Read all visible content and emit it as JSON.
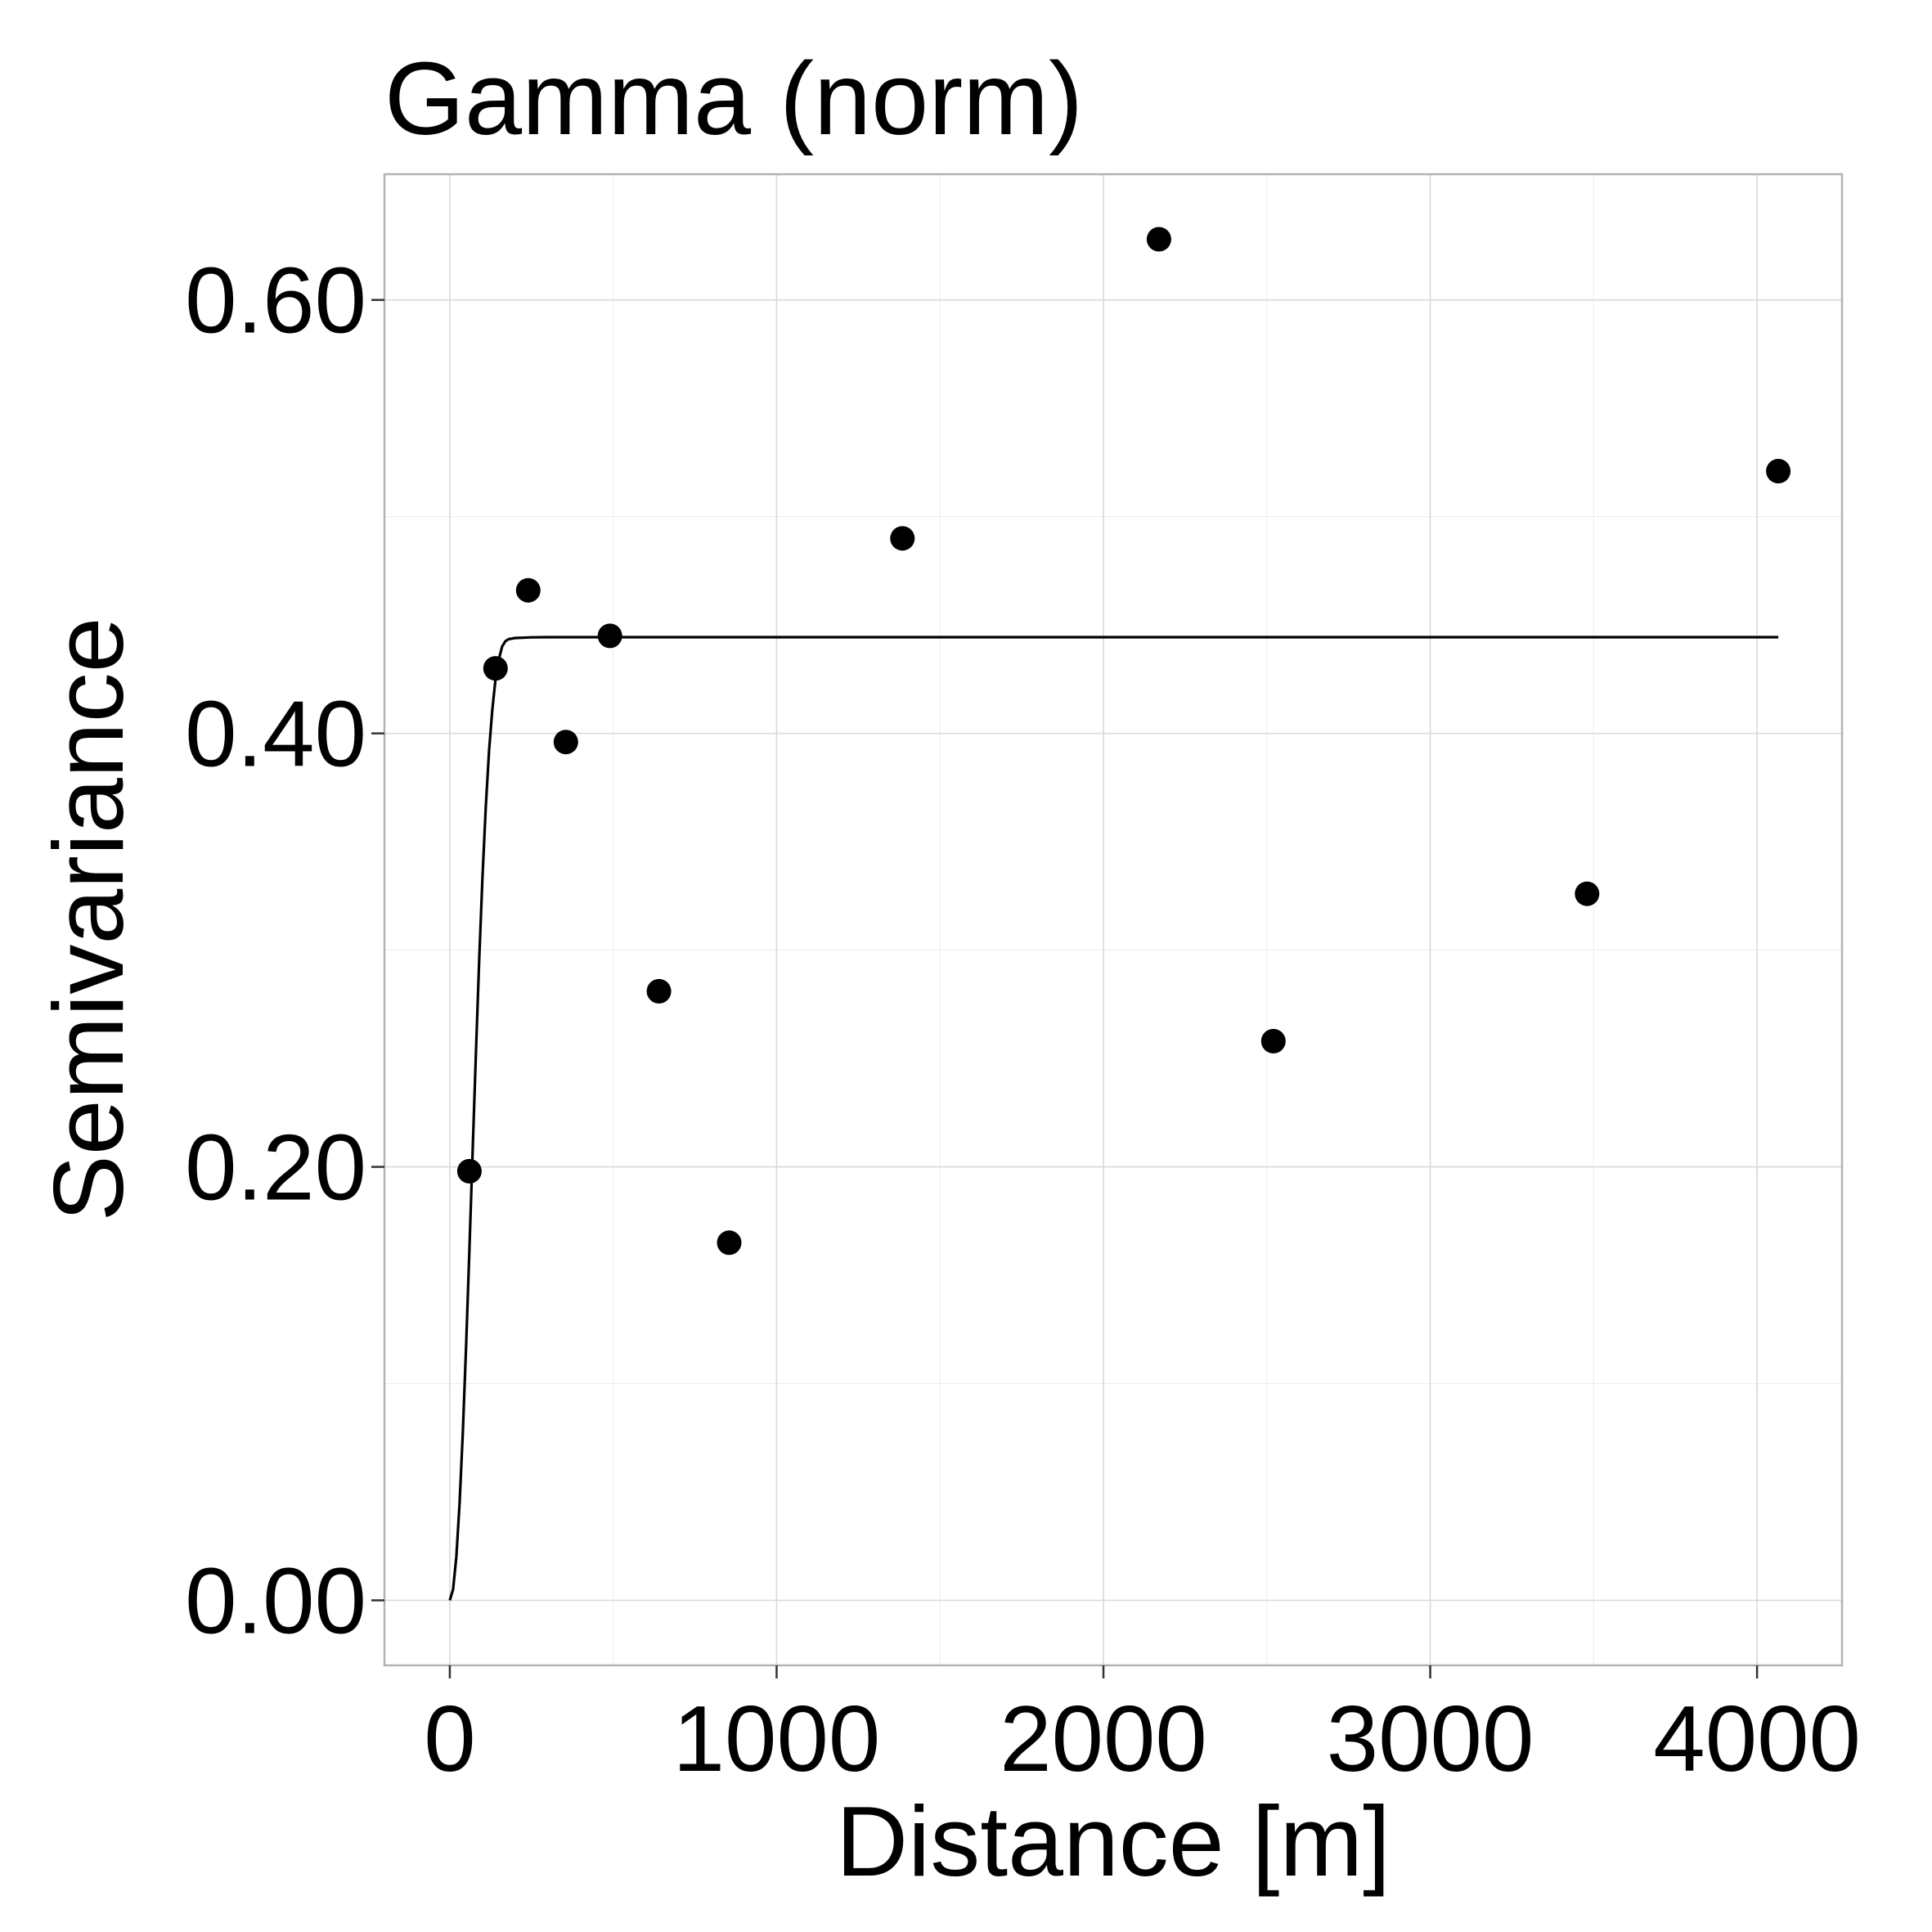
{
  "chart_data": {
    "type": "scatter",
    "title": "Gamma (norm)",
    "xlabel": "Distance [m]",
    "ylabel": "Semivariance",
    "xlim": [
      -200,
      4260
    ],
    "ylim": [
      -0.03,
      0.658
    ],
    "x_ticks": [
      0,
      1000,
      2000,
      3000,
      4000
    ],
    "x_tick_labels": [
      "0",
      "1000",
      "2000",
      "3000",
      "4000"
    ],
    "y_ticks": [
      0.0,
      0.2,
      0.4,
      0.6
    ],
    "y_tick_labels": [
      "0.00",
      "0.20",
      "0.40",
      "0.60"
    ],
    "grid": true,
    "legend": "none",
    "series": [
      {
        "type": "scatter",
        "points": [
          {
            "x": 60,
            "y": 0.198
          },
          {
            "x": 140,
            "y": 0.43
          },
          {
            "x": 240,
            "y": 0.466
          },
          {
            "x": 355,
            "y": 0.396
          },
          {
            "x": 490,
            "y": 0.445
          },
          {
            "x": 640,
            "y": 0.281
          },
          {
            "x": 855,
            "y": 0.165
          },
          {
            "x": 1385,
            "y": 0.49
          },
          {
            "x": 2170,
            "y": 0.628
          },
          {
            "x": 2520,
            "y": 0.258
          },
          {
            "x": 3480,
            "y": 0.326
          },
          {
            "x": 4065,
            "y": 0.521
          }
        ]
      },
      {
        "type": "line",
        "points": [
          {
            "x": 0,
            "y": 0.0
          },
          {
            "x": 10,
            "y": 0.005
          },
          {
            "x": 20,
            "y": 0.02
          },
          {
            "x": 30,
            "y": 0.045
          },
          {
            "x": 40,
            "y": 0.078
          },
          {
            "x": 50,
            "y": 0.118
          },
          {
            "x": 60,
            "y": 0.162
          },
          {
            "x": 70,
            "y": 0.208
          },
          {
            "x": 80,
            "y": 0.253
          },
          {
            "x": 90,
            "y": 0.296
          },
          {
            "x": 100,
            "y": 0.334
          },
          {
            "x": 110,
            "y": 0.366
          },
          {
            "x": 120,
            "y": 0.392
          },
          {
            "x": 130,
            "y": 0.411
          },
          {
            "x": 140,
            "y": 0.425
          },
          {
            "x": 150,
            "y": 0.434
          },
          {
            "x": 160,
            "y": 0.44
          },
          {
            "x": 170,
            "y": 0.4425
          },
          {
            "x": 180,
            "y": 0.4435
          },
          {
            "x": 200,
            "y": 0.444
          },
          {
            "x": 250,
            "y": 0.4443
          },
          {
            "x": 300,
            "y": 0.4444
          },
          {
            "x": 4065,
            "y": 0.4444
          }
        ]
      }
    ]
  }
}
